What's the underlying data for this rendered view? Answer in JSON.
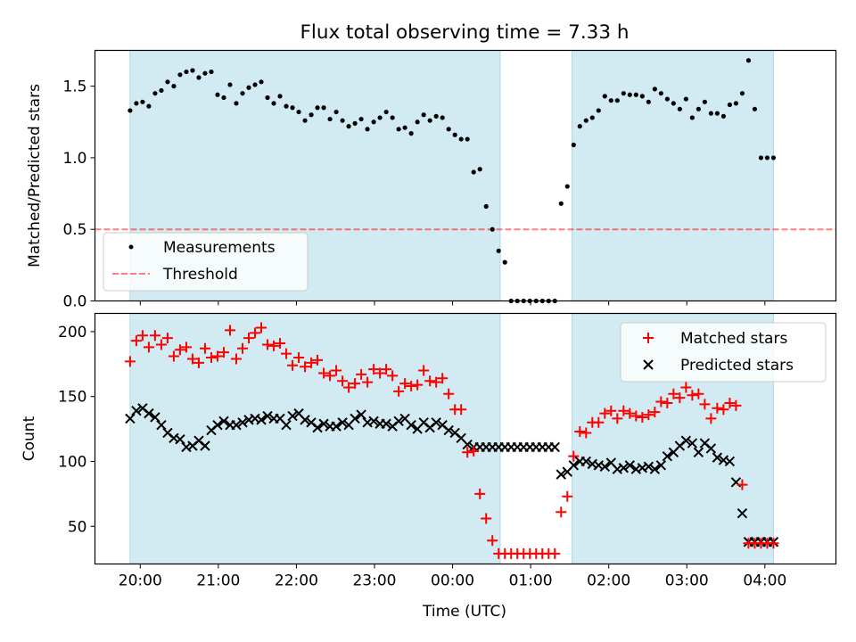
{
  "title": "Flux total observing time = 7.33 h",
  "colors": {
    "shade": "#add8e6",
    "measure": "#000000",
    "threshold": "#ff0000",
    "matched": "#ff0000",
    "predicted": "#000000"
  },
  "chart_data": [
    {
      "type": "scatter",
      "ylabel": "Matched/Predicted stars",
      "ylim": [
        0,
        1.75
      ],
      "yticks": [
        0.0,
        0.5,
        1.0,
        1.5
      ],
      "ytick_labels": [
        "0.0",
        "0.5",
        "1.0",
        "1.5"
      ],
      "xlim": [
        19.42,
        4.91
      ],
      "shaded_intervals": [
        [
          19.87,
          0.61
        ],
        [
          1.53,
          4.11
        ]
      ],
      "threshold": 0.5,
      "legend": {
        "position": "lower-left",
        "entries": [
          "Measurements",
          "Threshold"
        ]
      },
      "series": [
        {
          "name": "Measurements",
          "x": [
            19.87,
            19.95,
            20.03,
            20.11,
            20.19,
            20.27,
            20.35,
            20.43,
            20.51,
            20.59,
            20.67,
            20.75,
            20.83,
            20.91,
            20.99,
            21.07,
            21.15,
            21.23,
            21.31,
            21.39,
            21.47,
            21.55,
            21.63,
            21.71,
            21.79,
            21.87,
            21.95,
            22.03,
            22.11,
            22.19,
            22.27,
            22.35,
            22.43,
            22.51,
            22.59,
            22.67,
            22.75,
            22.83,
            22.91,
            22.99,
            23.07,
            23.15,
            23.23,
            23.31,
            23.39,
            23.47,
            23.55,
            23.63,
            23.71,
            23.79,
            23.87,
            23.95,
            0.03,
            0.11,
            0.19,
            0.27,
            0.35,
            0.43,
            0.51,
            0.59,
            0.67,
            0.75,
            0.83,
            0.91,
            0.99,
            1.07,
            1.15,
            1.23,
            1.31,
            1.39,
            1.47,
            1.55,
            1.63,
            1.71,
            1.79,
            1.87,
            1.95,
            2.03,
            2.11,
            2.19,
            2.27,
            2.35,
            2.43,
            2.51,
            2.59,
            2.67,
            2.75,
            2.83,
            2.91,
            2.99,
            3.07,
            3.15,
            3.23,
            3.31,
            3.39,
            3.47,
            3.55,
            3.63,
            3.71,
            3.79,
            3.87,
            3.95,
            4.03,
            4.11
          ],
          "y": [
            1.33,
            1.38,
            1.39,
            1.36,
            1.45,
            1.47,
            1.53,
            1.5,
            1.58,
            1.6,
            1.61,
            1.56,
            1.59,
            1.6,
            1.44,
            1.42,
            1.51,
            1.38,
            1.45,
            1.49,
            1.51,
            1.53,
            1.42,
            1.38,
            1.43,
            1.36,
            1.35,
            1.32,
            1.26,
            1.3,
            1.35,
            1.35,
            1.27,
            1.32,
            1.26,
            1.22,
            1.24,
            1.27,
            1.2,
            1.25,
            1.28,
            1.32,
            1.28,
            1.2,
            1.21,
            1.17,
            1.25,
            1.3,
            1.26,
            1.29,
            1.28,
            1.2,
            1.16,
            1.13,
            1.13,
            0.9,
            0.92,
            0.66,
            0.5,
            0.35,
            0.27,
            0.0,
            0.0,
            0.0,
            0.0,
            0.0,
            0.0,
            0.0,
            0.0,
            0.68,
            0.8,
            1.09,
            1.22,
            1.26,
            1.28,
            1.33,
            1.43,
            1.4,
            1.4,
            1.45,
            1.44,
            1.44,
            1.43,
            1.39,
            1.48,
            1.45,
            1.41,
            1.38,
            1.34,
            1.41,
            1.28,
            1.34,
            1.39,
            1.31,
            1.31,
            1.29,
            1.37,
            1.38,
            1.45,
            1.68,
            1.34,
            1.0,
            1.0,
            1.0
          ]
        }
      ]
    },
    {
      "type": "scatter",
      "ylabel": "Count",
      "xlabel": "Time (UTC)",
      "ylim": [
        21,
        214
      ],
      "yticks": [
        50,
        100,
        150,
        200
      ],
      "ytick_labels": [
        "50",
        "100",
        "150",
        "200"
      ],
      "xlim": [
        19.42,
        4.91
      ],
      "xticks": [
        20,
        21,
        22,
        23,
        0,
        1,
        2,
        3,
        4
      ],
      "xtick_labels": [
        "20:00",
        "21:00",
        "22:00",
        "23:00",
        "00:00",
        "01:00",
        "02:00",
        "03:00",
        "04:00"
      ],
      "shaded_intervals": [
        [
          19.87,
          0.61
        ],
        [
          1.53,
          4.11
        ]
      ],
      "legend": {
        "position": "top-right",
        "entries": [
          "Matched stars",
          "Predicted stars"
        ]
      },
      "series": [
        {
          "name": "Matched stars",
          "x": [
            19.87,
            19.95,
            20.03,
            20.11,
            20.19,
            20.27,
            20.35,
            20.43,
            20.51,
            20.59,
            20.67,
            20.75,
            20.83,
            20.91,
            20.99,
            21.07,
            21.15,
            21.23,
            21.31,
            21.39,
            21.47,
            21.55,
            21.63,
            21.71,
            21.79,
            21.87,
            21.95,
            22.03,
            22.11,
            22.19,
            22.27,
            22.35,
            22.43,
            22.51,
            22.59,
            22.67,
            22.75,
            22.83,
            22.91,
            22.99,
            23.07,
            23.15,
            23.23,
            23.31,
            23.39,
            23.47,
            23.55,
            23.63,
            23.71,
            23.79,
            23.87,
            23.95,
            0.03,
            0.11,
            0.19,
            0.27,
            0.35,
            0.43,
            0.51,
            0.59,
            0.67,
            0.75,
            0.83,
            0.91,
            0.99,
            1.07,
            1.15,
            1.23,
            1.31,
            1.39,
            1.47,
            1.55,
            1.63,
            1.71,
            1.79,
            1.87,
            1.95,
            2.03,
            2.11,
            2.19,
            2.27,
            2.35,
            2.43,
            2.51,
            2.59,
            2.67,
            2.75,
            2.83,
            2.91,
            2.99,
            3.07,
            3.15,
            3.23,
            3.31,
            3.39,
            3.47,
            3.55,
            3.63,
            3.71,
            3.79,
            3.87,
            3.95,
            4.03,
            4.11
          ],
          "y": [
            177,
            193,
            197,
            188,
            197,
            190,
            195,
            181,
            186,
            188,
            179,
            176,
            187,
            180,
            181,
            184,
            201,
            179,
            187,
            195,
            199,
            203,
            190,
            189,
            191,
            183,
            174,
            180,
            173,
            176,
            178,
            168,
            166,
            170,
            162,
            157,
            160,
            167,
            161,
            171,
            168,
            171,
            166,
            154,
            160,
            158,
            159,
            170,
            162,
            161,
            164,
            152,
            140,
            140,
            107,
            108,
            75,
            56,
            39,
            29,
            29,
            29,
            29,
            29,
            29,
            29,
            29,
            29,
            29,
            61,
            73,
            104,
            123,
            122,
            130,
            130,
            137,
            139,
            133,
            139,
            137,
            135,
            134,
            136,
            138,
            146,
            145,
            152,
            149,
            157,
            151,
            152,
            144,
            133,
            141,
            140,
            145,
            143,
            82,
            37,
            37,
            37,
            37,
            37
          ]
        },
        {
          "name": "Predicted stars",
          "x": [
            19.87,
            19.95,
            20.03,
            20.11,
            20.19,
            20.27,
            20.35,
            20.43,
            20.51,
            20.59,
            20.67,
            20.75,
            20.83,
            20.91,
            20.99,
            21.07,
            21.15,
            21.23,
            21.31,
            21.39,
            21.47,
            21.55,
            21.63,
            21.71,
            21.79,
            21.87,
            21.95,
            22.03,
            22.11,
            22.19,
            22.27,
            22.35,
            22.43,
            22.51,
            22.59,
            22.67,
            22.75,
            22.83,
            22.91,
            22.99,
            23.07,
            23.15,
            23.23,
            23.31,
            23.39,
            23.47,
            23.55,
            23.63,
            23.71,
            23.79,
            23.87,
            23.95,
            0.03,
            0.11,
            0.19,
            0.27,
            0.35,
            0.43,
            0.51,
            0.59,
            0.67,
            0.75,
            0.83,
            0.91,
            0.99,
            1.07,
            1.15,
            1.23,
            1.31,
            1.39,
            1.47,
            1.55,
            1.63,
            1.71,
            1.79,
            1.87,
            1.95,
            2.03,
            2.11,
            2.19,
            2.27,
            2.35,
            2.43,
            2.51,
            2.59,
            2.67,
            2.75,
            2.83,
            2.91,
            2.99,
            3.07,
            3.15,
            3.23,
            3.31,
            3.39,
            3.47,
            3.55,
            3.63,
            3.71,
            3.79,
            3.87,
            3.95,
            4.03,
            4.11
          ],
          "y": [
            133,
            139,
            141,
            137,
            134,
            128,
            122,
            118,
            117,
            111,
            112,
            116,
            112,
            124,
            128,
            131,
            128,
            128,
            130,
            132,
            133,
            132,
            135,
            133,
            133,
            128,
            135,
            137,
            132,
            130,
            126,
            129,
            127,
            127,
            130,
            128,
            133,
            136,
            130,
            131,
            129,
            129,
            127,
            131,
            133,
            128,
            125,
            130,
            126,
            130,
            128,
            124,
            122,
            118,
            113,
            111,
            111,
            111,
            111,
            111,
            111,
            111,
            111,
            111,
            111,
            111,
            111,
            111,
            111,
            90,
            92,
            97,
            100,
            100,
            98,
            97,
            96,
            99,
            94,
            95,
            97,
            94,
            95,
            96,
            94,
            97,
            104,
            107,
            112,
            116,
            114,
            107,
            114,
            110,
            103,
            101,
            100,
            84,
            60,
            38,
            38,
            38,
            38,
            38
          ]
        }
      ]
    }
  ]
}
